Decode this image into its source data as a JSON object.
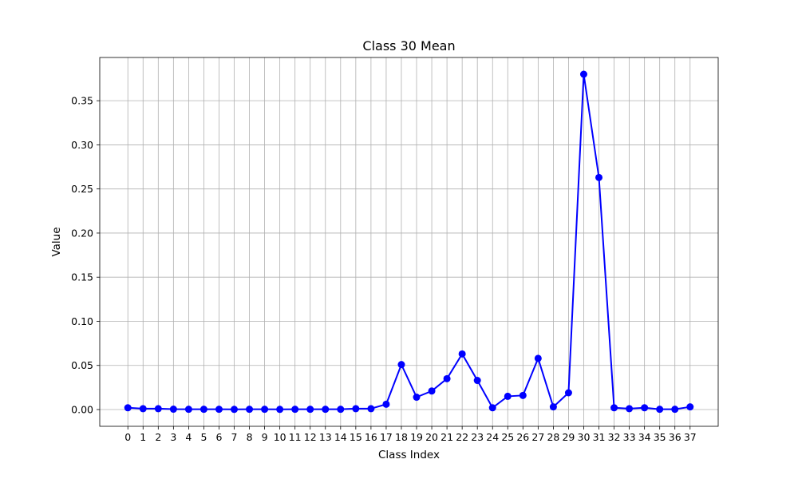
{
  "chart_data": {
    "type": "line",
    "title": "Class 30 Mean",
    "xlabel": "Class Index",
    "ylabel": "Value",
    "x": [
      0,
      1,
      2,
      3,
      4,
      5,
      6,
      7,
      8,
      9,
      10,
      11,
      12,
      13,
      14,
      15,
      16,
      17,
      18,
      19,
      20,
      21,
      22,
      23,
      24,
      25,
      26,
      27,
      28,
      29,
      30,
      31,
      32,
      33,
      34,
      35,
      36,
      37
    ],
    "series": [
      {
        "name": "",
        "color": "#0000ff",
        "marker": "circle",
        "values": [
          0.002,
          0.001,
          0.001,
          0.0004,
          0.0003,
          0.0003,
          0.0003,
          0.0002,
          0.0003,
          0.0003,
          0.0002,
          0.0003,
          0.0003,
          0.0003,
          0.0003,
          0.001,
          0.001,
          0.006,
          0.051,
          0.014,
          0.021,
          0.035,
          0.063,
          0.033,
          0.002,
          0.015,
          0.016,
          0.058,
          0.003,
          0.019,
          0.38,
          0.263,
          0.002,
          0.001,
          0.002,
          0.0003,
          0.0003,
          0.003
        ]
      }
    ],
    "xticks": [
      "0",
      "1",
      "2",
      "3",
      "4",
      "5",
      "6",
      "7",
      "8",
      "9",
      "10",
      "11",
      "12",
      "13",
      "14",
      "15",
      "16",
      "17",
      "18",
      "19",
      "20",
      "21",
      "22",
      "23",
      "24",
      "25",
      "26",
      "27",
      "28",
      "29",
      "30",
      "31",
      "32",
      "33",
      "34",
      "35",
      "36",
      "37"
    ],
    "yticks": [
      "0.00",
      "0.05",
      "0.10",
      "0.15",
      "0.20",
      "0.25",
      "0.30",
      "0.35"
    ],
    "ytick_values": [
      0,
      0.05,
      0.1,
      0.15,
      0.2,
      0.25,
      0.3,
      0.35
    ],
    "xlim": [
      -1.85,
      38.85
    ],
    "ylim": [
      -0.019,
      0.399
    ],
    "grid": true,
    "legend": "none"
  }
}
